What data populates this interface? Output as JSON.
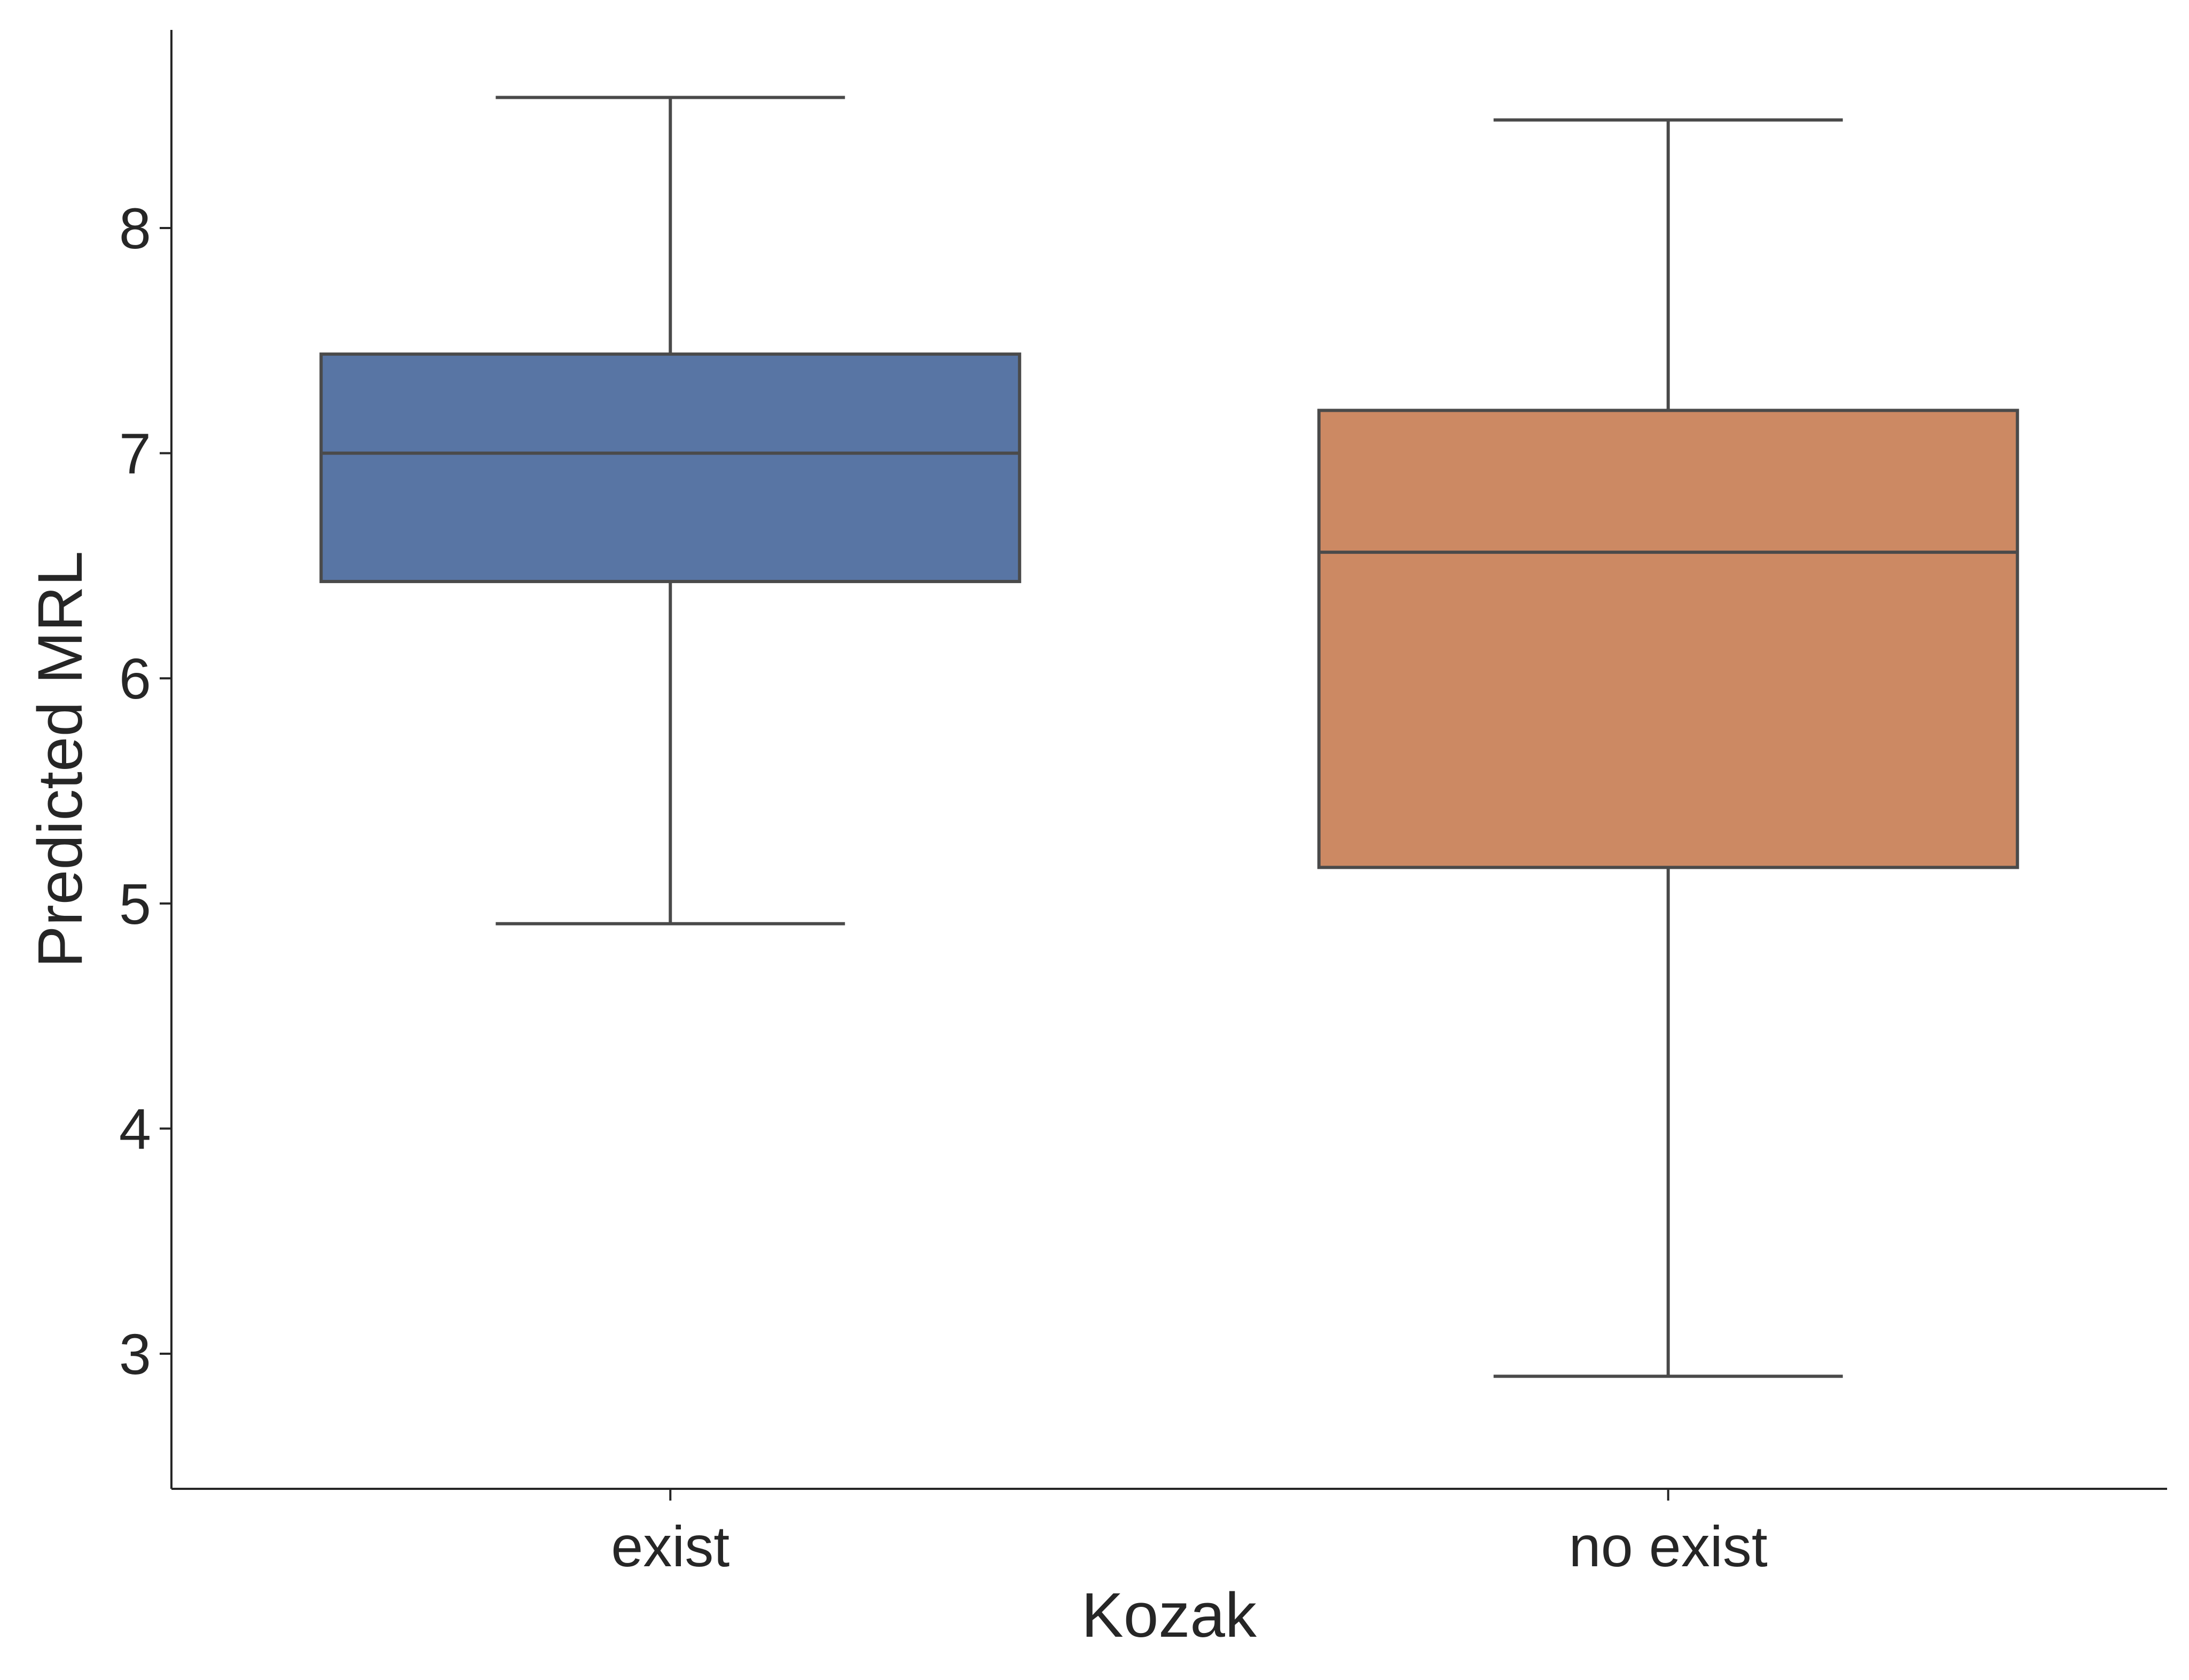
{
  "chart_data": {
    "type": "box",
    "title": "",
    "xlabel": "Kozak",
    "ylabel": "Predicted MRL",
    "categories": [
      "exist",
      "no exist"
    ],
    "yticks": [
      "3",
      "4",
      "5",
      "6",
      "7",
      "8"
    ],
    "ylim": [
      2.4,
      8.88
    ],
    "grid": false,
    "legend": "none",
    "boxes": [
      {
        "category": "exist",
        "whisker_low": 4.91,
        "q1": 6.43,
        "median": 7.0,
        "q3": 7.44,
        "whisker_high": 8.58,
        "color": "#5875a4"
      },
      {
        "category": "no exist",
        "whisker_low": 2.9,
        "q1": 5.16,
        "median": 6.56,
        "q3": 7.19,
        "whisker_high": 8.48,
        "color": "#cc8963"
      }
    ],
    "line_color": "#4a4a4a",
    "axis_color": "#262626"
  }
}
